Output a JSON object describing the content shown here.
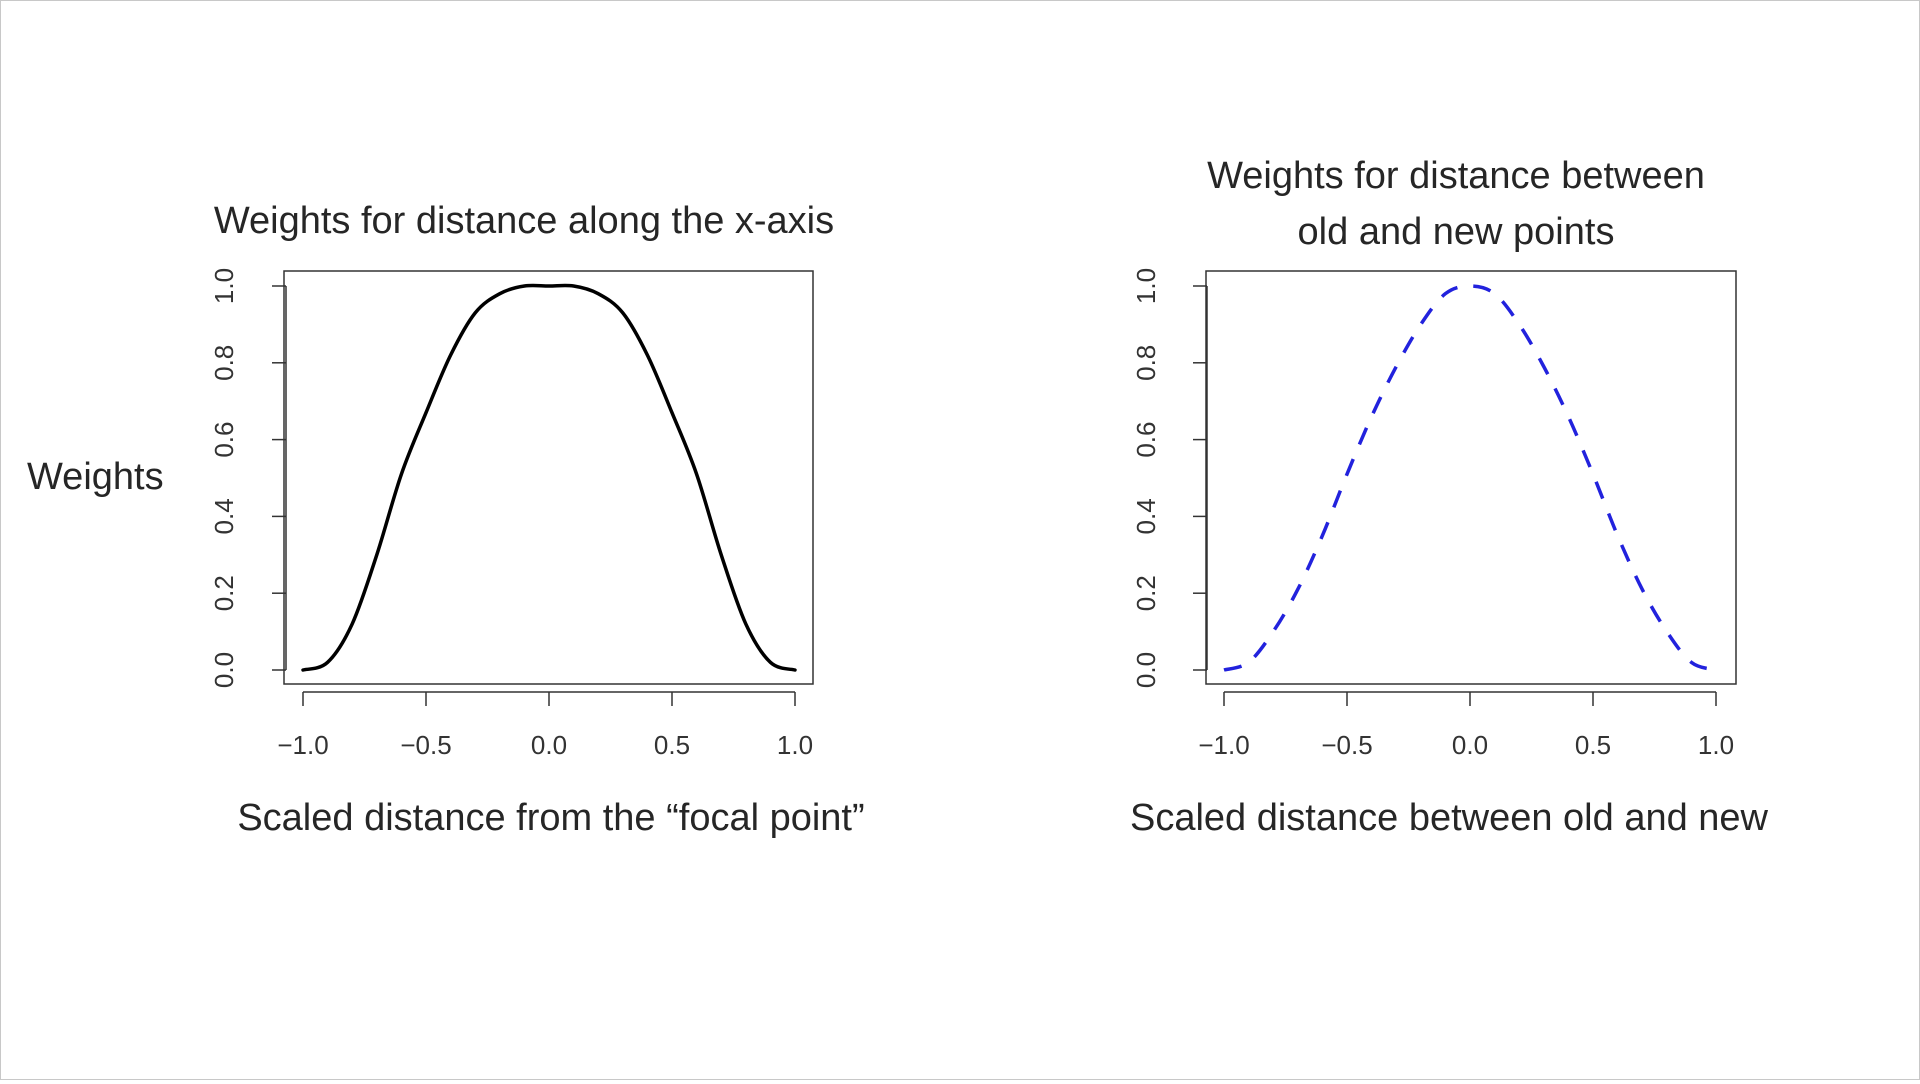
{
  "slide": {
    "weights_label": "Weights"
  },
  "chart_data": [
    {
      "type": "line",
      "title": "Weights for distance along the x-axis",
      "xlabel": "Scaled distance from the “focal point”",
      "ylabel": "",
      "xlim": [
        -1.0,
        1.0
      ],
      "ylim": [
        0.0,
        1.0
      ],
      "x_ticks": [
        "-1.0",
        "-0.5",
        "0.0",
        "0.5",
        "1.0"
      ],
      "y_ticks": [
        "0.0",
        "0.2",
        "0.4",
        "0.6",
        "0.8",
        "1.0"
      ],
      "grid": false,
      "line_color": "#000000",
      "line_style": "solid",
      "series": [
        {
          "x": [
            -1.0,
            -0.9,
            -0.8,
            -0.7,
            -0.6,
            -0.5,
            -0.4,
            -0.3,
            -0.2,
            -0.1,
            0.0,
            0.1,
            0.2,
            0.3,
            0.4,
            0.5,
            0.6,
            0.7,
            0.8,
            0.9,
            1.0
          ],
          "values": [
            0.0,
            0.02,
            0.12,
            0.3,
            0.51,
            0.67,
            0.82,
            0.93,
            0.98,
            1.0,
            1.0,
            1.0,
            0.98,
            0.93,
            0.82,
            0.67,
            0.51,
            0.3,
            0.12,
            0.02,
            0.0
          ]
        }
      ]
    },
    {
      "type": "line",
      "title": "Weights for distance between old and new points",
      "xlabel": "Scaled distance between old and new",
      "ylabel": "",
      "xlim": [
        -1.0,
        1.0
      ],
      "ylim": [
        0.0,
        1.0
      ],
      "x_ticks": [
        "-1.0",
        "-0.5",
        "0.0",
        "0.5",
        "1.0"
      ],
      "y_ticks": [
        "0.0",
        "0.2",
        "0.4",
        "0.6",
        "0.8",
        "1.0"
      ],
      "grid": false,
      "line_color": "#2222dd",
      "line_style": "dashed",
      "series": [
        {
          "x": [
            -1.0,
            -0.9,
            -0.8,
            -0.7,
            -0.6,
            -0.5,
            -0.4,
            -0.3,
            -0.2,
            -0.1,
            0.0,
            0.1,
            0.2,
            0.3,
            0.4,
            0.5,
            0.6,
            0.7,
            0.8,
            0.9,
            1.0
          ],
          "values": [
            0.0,
            0.02,
            0.1,
            0.21,
            0.35,
            0.51,
            0.66,
            0.79,
            0.9,
            0.98,
            1.0,
            0.98,
            0.9,
            0.79,
            0.66,
            0.51,
            0.35,
            0.21,
            0.1,
            0.02,
            0.0
          ]
        }
      ]
    }
  ]
}
